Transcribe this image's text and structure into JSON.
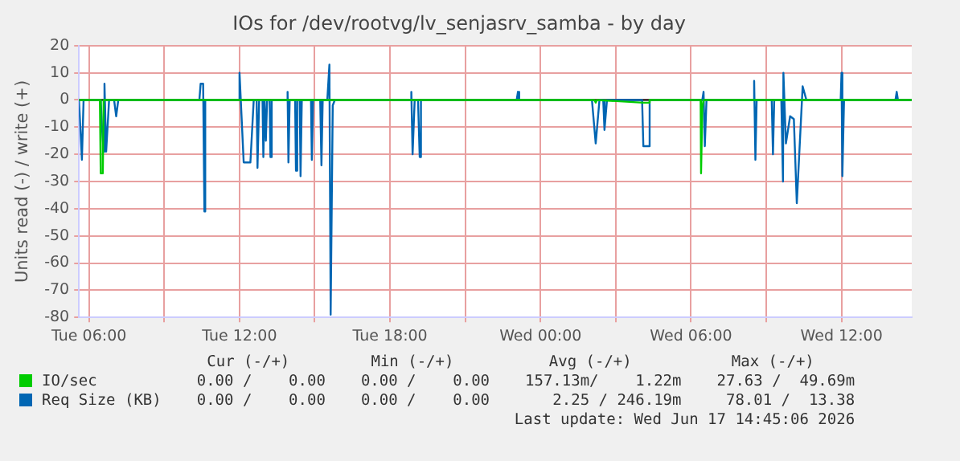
{
  "chart_data": {
    "type": "line",
    "title": "IOs for /dev/rootvg/lv_senjasrv_samba - by day",
    "ylabel": "Units read (-) / write (+)",
    "xlim": [
      "2026-06-16T05:36",
      "2026-06-17T14:48"
    ],
    "ylim": [
      -80,
      20
    ],
    "xticks": [
      {
        "value": "2026-06-16T06:00",
        "label": "Tue 06:00"
      },
      {
        "value": "2026-06-16T09:00",
        "label": null
      },
      {
        "value": "2026-06-16T12:00",
        "label": "Tue 12:00"
      },
      {
        "value": "2026-06-16T15:00",
        "label": null
      },
      {
        "value": "2026-06-16T18:00",
        "label": "Tue 18:00"
      },
      {
        "value": "2026-06-16T21:00",
        "label": null
      },
      {
        "value": "2026-06-17T00:00",
        "label": "Wed 00:00"
      },
      {
        "value": "2026-06-17T03:00",
        "label": null
      },
      {
        "value": "2026-06-17T06:00",
        "label": "Wed 06:00"
      },
      {
        "value": "2026-06-17T09:00",
        "label": null
      },
      {
        "value": "2026-06-17T12:00",
        "label": "Wed 12:00"
      }
    ],
    "yticks": [
      -80,
      -70,
      -60,
      -50,
      -40,
      -30,
      -20,
      -10,
      0,
      10,
      20
    ],
    "grid": true,
    "legend": "bottom",
    "marker": "none",
    "line_style": "solid",
    "ref_lines": [
      {
        "axis": "y",
        "value": 0,
        "color": "#000000"
      }
    ],
    "series": [
      {
        "name": "IO/sec",
        "color": "#00cc00",
        "x": [
          "2026-06-16T05:36",
          "2026-06-16T06:26",
          "2026-06-16T06:28",
          "2026-06-16T06:33",
          "2026-06-16T06:35",
          "2026-06-17T02:09",
          "2026-06-17T02:12",
          "2026-06-17T02:15",
          "2026-06-17T04:06",
          "2026-06-17T04:18",
          "2026-06-17T04:21",
          "2026-06-17T06:23",
          "2026-06-17T06:24",
          "2026-06-17T06:27",
          "2026-06-17T06:30",
          "2026-06-17T14:48"
        ],
        "values": [
          0,
          0,
          -27,
          -27,
          0,
          0,
          -1,
          0,
          -1,
          -1,
          0,
          0,
          -27,
          -3,
          0,
          0
        ]
      },
      {
        "name": "Req Size (KB)",
        "color": "#0066b3",
        "x": [
          "2026-06-16T05:36",
          "2026-06-16T05:39",
          "2026-06-16T05:43",
          "2026-06-16T05:47",
          "2026-06-16T06:28",
          "2026-06-16T06:31",
          "2026-06-16T06:35",
          "2026-06-16T06:37",
          "2026-06-16T06:41",
          "2026-06-16T06:48",
          "2026-06-16T07:00",
          "2026-06-16T07:05",
          "2026-06-16T07:10",
          "2026-06-16T10:24",
          "2026-06-16T10:27",
          "2026-06-16T10:33",
          "2026-06-16T10:36",
          "2026-06-16T10:38",
          "2026-06-16T11:57",
          "2026-06-16T12:00",
          "2026-06-16T12:10",
          "2026-06-16T12:26",
          "2026-06-16T12:34",
          "2026-06-16T12:41",
          "2026-06-16T12:43",
          "2026-06-16T12:47",
          "2026-06-16T12:55",
          "2026-06-16T12:57",
          "2026-06-16T13:00",
          "2026-06-16T13:03",
          "2026-06-16T13:06",
          "2026-06-16T13:12",
          "2026-06-16T13:14",
          "2026-06-16T13:17",
          "2026-06-16T13:53",
          "2026-06-16T13:55",
          "2026-06-16T13:57",
          "2026-06-16T14:00",
          "2026-06-16T14:13",
          "2026-06-16T14:15",
          "2026-06-16T14:18",
          "2026-06-16T14:24",
          "2026-06-16T14:26",
          "2026-06-16T14:29",
          "2026-06-16T14:51",
          "2026-06-16T14:53",
          "2026-06-16T14:56",
          "2026-06-16T15:13",
          "2026-06-16T15:16",
          "2026-06-16T15:19",
          "2026-06-16T15:30",
          "2026-06-16T15:35",
          "2026-06-16T15:38",
          "2026-06-16T15:43",
          "2026-06-16T15:48",
          "2026-06-16T18:48",
          "2026-06-16T18:51",
          "2026-06-16T18:54",
          "2026-06-16T18:59",
          "2026-06-16T19:07",
          "2026-06-16T19:11",
          "2026-06-16T19:14",
          "2026-06-16T23:03",
          "2026-06-16T23:06",
          "2026-06-16T23:09",
          "2026-06-17T02:03",
          "2026-06-17T02:12",
          "2026-06-17T02:21",
          "2026-06-17T02:30",
          "2026-06-17T02:33",
          "2026-06-17T02:39",
          "2026-06-17T04:03",
          "2026-06-17T04:06",
          "2026-06-17T04:18",
          "2026-06-17T04:21",
          "2026-06-17T06:27",
          "2026-06-17T06:30",
          "2026-06-17T06:33",
          "2026-06-17T06:37",
          "2026-06-17T08:29",
          "2026-06-17T08:31",
          "2026-06-17T08:34",
          "2026-06-17T08:37",
          "2026-06-17T09:13",
          "2026-06-17T09:16",
          "2026-06-17T09:19",
          "2026-06-17T09:36",
          "2026-06-17T09:40",
          "2026-06-17T09:41",
          "2026-06-17T09:47",
          "2026-06-17T09:57",
          "2026-06-17T10:06",
          "2026-06-17T10:13",
          "2026-06-17T10:27",
          "2026-06-17T10:36",
          "2026-06-17T11:58",
          "2026-06-17T12:00",
          "2026-06-17T12:02",
          "2026-06-17T12:06",
          "2026-06-17T14:09",
          "2026-06-17T14:12",
          "2026-06-17T14:15",
          "2026-06-17T14:48"
        ],
        "values": [
          0,
          0,
          -22,
          0,
          0,
          -10,
          -19,
          6,
          -19,
          0,
          0,
          -6,
          0,
          0,
          6,
          6,
          -41,
          0,
          0,
          10,
          -23,
          -23,
          0,
          0,
          -25,
          0,
          0,
          -21,
          0,
          -15,
          0,
          0,
          -21,
          0,
          0,
          3,
          -23,
          0,
          0,
          -26,
          0,
          0,
          -28,
          0,
          0,
          -22,
          0,
          0,
          -24,
          0,
          0,
          13,
          -79,
          -2,
          0,
          0,
          3,
          -20,
          0,
          0,
          -21,
          0,
          0,
          3,
          0,
          0,
          -16,
          0,
          0,
          -11,
          0,
          0,
          -17,
          -17,
          0,
          0,
          3,
          -17,
          0,
          0,
          7,
          -22,
          0,
          0,
          -20,
          0,
          0,
          -30,
          10,
          -16,
          -6,
          -7,
          -38,
          5,
          0,
          0,
          10,
          -28,
          0,
          0,
          3,
          0,
          0
        ]
      }
    ],
    "annotations": [
      "Cur (-/+)",
      "Min (-/+)",
      "Avg (-/+)",
      "Max (-/+)",
      "0.00 /    0.00",
      "0.00 /    0.00",
      "157.13m/    1.22m",
      "27.63 /  49.69m",
      "0.00 /    0.00",
      "0.00 /    0.00",
      "2.25 / 246.19m",
      "78.01 /  13.38",
      "Last update: Wed Jun 17 14:45:06 2026"
    ]
  }
}
